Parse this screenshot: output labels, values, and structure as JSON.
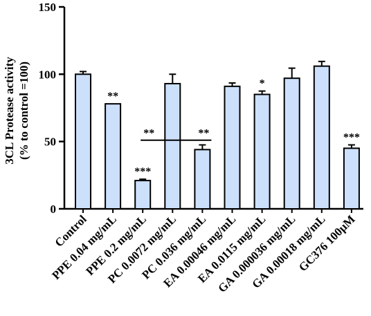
{
  "chart_data": {
    "type": "bar",
    "ylabel_line1": "3CL Protease activity",
    "ylabel_line2": "(% to control =100)",
    "ylim": [
      0,
      150
    ],
    "yticks": [
      0,
      50,
      100,
      150
    ],
    "bar_color": "#cce0fb",
    "categories": [
      "Control",
      "PPE 0.04 mg/mL",
      "PPE 0.2 mg/mL",
      "PC 0.0072 mg/mL",
      "PC 0.036 mg/mL",
      "EA 0.00046 mg/mL",
      "EA 0.0115 mg/mL",
      "GA 0.000036 mg/mL",
      "GA 0.00018 mg/mL",
      "GC376 100µM"
    ],
    "values": [
      100,
      78,
      21,
      93,
      44,
      91,
      85,
      97,
      106,
      45
    ],
    "errors": [
      2,
      0,
      1,
      7,
      3.5,
      2.5,
      2.5,
      7.5,
      3.5,
      2.5
    ],
    "significance": [
      "",
      "**",
      "***",
      "",
      "",
      "",
      "*",
      "",
      "",
      "***"
    ],
    "bracket": {
      "from_index": 2,
      "to_index": 4,
      "value": 51,
      "labels": [
        "**",
        "**"
      ]
    }
  }
}
